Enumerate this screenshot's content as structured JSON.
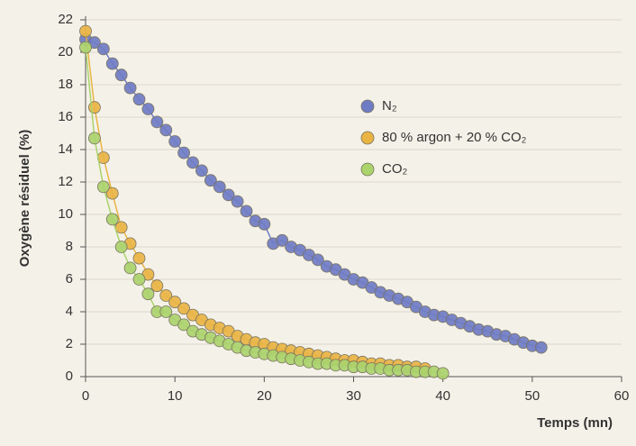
{
  "chart_data": {
    "type": "scatter",
    "ylabel": "Oxygène résiduel (%)",
    "xlabel": "Temps (mn)",
    "xlim": [
      0,
      60
    ],
    "xticks": [
      0,
      10,
      20,
      30,
      40,
      50,
      60
    ],
    "ylim": [
      0,
      22
    ],
    "yticks": [
      0,
      2,
      4,
      6,
      8,
      10,
      12,
      14,
      16,
      18,
      20,
      22
    ],
    "grid": true,
    "legend": "upper-right",
    "series": [
      {
        "name": "N₂",
        "color": "#6f7cc4",
        "x": [
          0,
          1,
          2,
          3,
          4,
          5,
          6,
          7,
          8,
          9,
          10,
          11,
          12,
          13,
          14,
          15,
          16,
          17,
          18,
          19,
          20,
          21,
          22,
          23,
          24,
          25,
          26,
          27,
          28,
          29,
          30,
          31,
          32,
          33,
          34,
          35,
          36,
          37,
          38,
          39,
          40,
          41,
          42,
          43,
          44,
          45,
          46,
          47,
          48,
          49,
          50,
          51
        ],
        "values": [
          20.8,
          20.6,
          20.2,
          19.3,
          18.6,
          17.8,
          17.1,
          16.5,
          15.7,
          15.2,
          14.5,
          13.8,
          13.2,
          12.7,
          12.1,
          11.7,
          11.2,
          10.8,
          10.2,
          9.6,
          9.4,
          8.2,
          8.4,
          8.0,
          7.8,
          7.5,
          7.2,
          6.8,
          6.6,
          6.3,
          6.0,
          5.8,
          5.5,
          5.2,
          5.0,
          4.8,
          4.6,
          4.3,
          4.0,
          3.8,
          3.7,
          3.5,
          3.3,
          3.1,
          2.9,
          2.8,
          2.6,
          2.5,
          2.3,
          2.1,
          1.9,
          1.8
        ]
      },
      {
        "name": "80 % argon + 20 % CO₂",
        "color": "#e9b444",
        "x": [
          0,
          1,
          2,
          3,
          4,
          5,
          6,
          7,
          8,
          9,
          10,
          11,
          12,
          13,
          14,
          15,
          16,
          17,
          18,
          19,
          20,
          21,
          22,
          23,
          24,
          25,
          26,
          27,
          28,
          29,
          30,
          31,
          32,
          33,
          34,
          35,
          36,
          37,
          38
        ],
        "values": [
          21.3,
          16.6,
          13.5,
          11.3,
          9.2,
          8.2,
          7.3,
          6.3,
          5.6,
          5.0,
          4.6,
          4.2,
          3.8,
          3.5,
          3.2,
          3.0,
          2.8,
          2.5,
          2.3,
          2.1,
          2.0,
          1.8,
          1.7,
          1.6,
          1.5,
          1.4,
          1.3,
          1.2,
          1.1,
          1.0,
          1.0,
          0.9,
          0.8,
          0.8,
          0.7,
          0.7,
          0.6,
          0.6,
          0.5
        ]
      },
      {
        "name": "CO₂",
        "color": "#aad36c",
        "x": [
          0,
          1,
          2,
          3,
          4,
          5,
          6,
          7,
          8,
          9,
          10,
          11,
          12,
          13,
          14,
          15,
          16,
          17,
          18,
          19,
          20,
          21,
          22,
          23,
          24,
          25,
          26,
          27,
          28,
          29,
          30,
          31,
          32,
          33,
          34,
          35,
          36,
          37,
          38,
          39,
          40
        ],
        "values": [
          20.3,
          14.7,
          11.7,
          9.7,
          8.0,
          6.7,
          6.0,
          5.1,
          4.0,
          4.0,
          3.5,
          3.2,
          2.8,
          2.6,
          2.4,
          2.2,
          2.0,
          1.8,
          1.6,
          1.5,
          1.4,
          1.3,
          1.2,
          1.1,
          1.0,
          0.9,
          0.8,
          0.8,
          0.7,
          0.7,
          0.6,
          0.6,
          0.5,
          0.5,
          0.4,
          0.4,
          0.4,
          0.3,
          0.3,
          0.3,
          0.2
        ]
      }
    ]
  }
}
